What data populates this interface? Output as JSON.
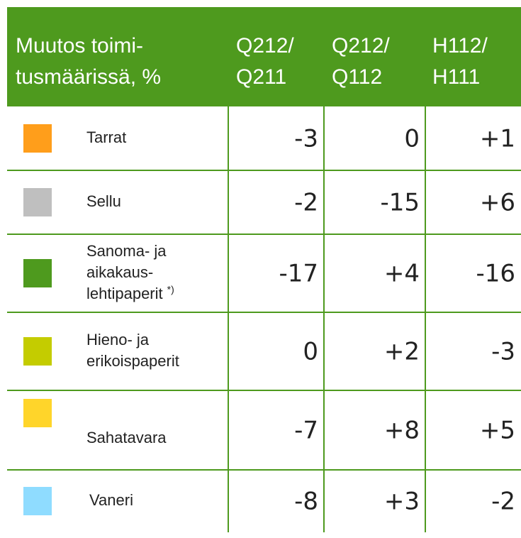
{
  "table": {
    "header": [
      [
        "Muutos toimi-",
        "tusmäärissä, %"
      ],
      [
        "Q212/",
        "Q211"
      ],
      [
        "Q212/",
        "Q112"
      ],
      [
        "H112/",
        "H111"
      ]
    ],
    "rows": [
      {
        "color": "#ff9e1b",
        "label": [
          "Tarrat"
        ],
        "values": [
          "-3",
          "0",
          "+1"
        ]
      },
      {
        "color": "#bfbfbf",
        "label": [
          "Sellu"
        ],
        "values": [
          "-2",
          "-15",
          "+6"
        ]
      },
      {
        "color": "#4e9a1e",
        "label": [
          "Sanoma- ja",
          "aikakaus-",
          "lehtipaperit"
        ],
        "note": "*)",
        "values": [
          "-17",
          "+4",
          "-16"
        ]
      },
      {
        "color": "#c4cc00",
        "label": [
          "Hieno- ja",
          "erikoispaperit"
        ],
        "values": [
          "0",
          "+2",
          "-3"
        ]
      },
      {
        "color": "#ffd52a",
        "label": [
          "Sahatavara"
        ],
        "values": [
          "-7",
          "+8",
          "+5"
        ]
      },
      {
        "color": "#8fdcff",
        "label": [
          "Vaneri"
        ],
        "values": [
          "-8",
          "+3",
          "-2"
        ]
      }
    ]
  }
}
